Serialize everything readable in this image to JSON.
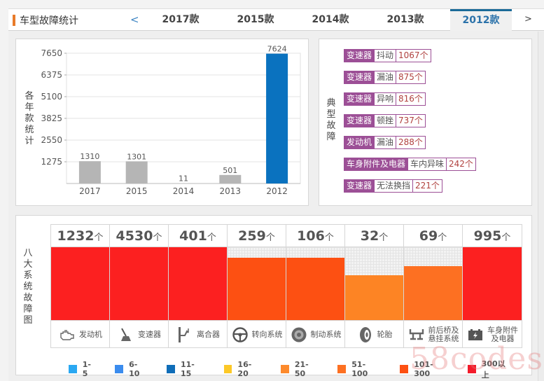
{
  "header": {
    "title": "车型故障统计",
    "prev": "<",
    "next": ">",
    "tabs": [
      {
        "label": "2017款",
        "active": false
      },
      {
        "label": "2015款",
        "active": false
      },
      {
        "label": "2014款",
        "active": false
      },
      {
        "label": "2013款",
        "active": false
      },
      {
        "label": "2012款",
        "active": true
      }
    ]
  },
  "bar_panel": {
    "ylabel_chars": [
      "各",
      "年",
      "款",
      "统",
      "计"
    ]
  },
  "chart_data": {
    "type": "bar",
    "title": "",
    "xlabel": "",
    "ylabel": "各年款统计",
    "categories": [
      "2017",
      "2015",
      "2014",
      "2013",
      "2012"
    ],
    "values": [
      1310,
      1301,
      11,
      501,
      7624
    ],
    "highlight": "2012",
    "colors": {
      "default": "#b5b5b5",
      "highlight": "#0a72bf"
    },
    "yticks": [
      1275,
      2550,
      3825,
      5100,
      6375,
      7650
    ],
    "ylim": [
      0,
      7650
    ],
    "grid": true
  },
  "fault_panel": {
    "label_chars": [
      "典",
      "型",
      "故",
      "障"
    ],
    "items": [
      {
        "part": "变速器",
        "issue": "抖动",
        "count": "1067个"
      },
      {
        "part": "变速器",
        "issue": "漏油",
        "count": "875个"
      },
      {
        "part": "变速器",
        "issue": "异响",
        "count": "816个"
      },
      {
        "part": "变速器",
        "issue": "顿挫",
        "count": "737个"
      },
      {
        "part": "发动机",
        "issue": "漏油",
        "count": "288个"
      },
      {
        "part": "车身附件及电器",
        "issue": "车内异味",
        "count": "242个"
      },
      {
        "part": "变速器",
        "issue": "无法换挡",
        "count": "221个"
      }
    ]
  },
  "system_panel": {
    "label_chars": [
      "八",
      "大",
      "系",
      "统",
      "故",
      "障",
      "图"
    ],
    "unit": "个",
    "systems": [
      {
        "name": "发动机",
        "count": "1232",
        "icon": "engine-icon",
        "level": 1.0,
        "color": "#fc2020"
      },
      {
        "name": "变速器",
        "count": "4530",
        "icon": "gear-shift-icon",
        "level": 1.0,
        "color": "#fc2020"
      },
      {
        "name": "离合器",
        "count": "401",
        "icon": "clutch-pedal-icon",
        "level": 1.0,
        "color": "#fc2020"
      },
      {
        "name": "转向系统",
        "count": "259",
        "icon": "steering-wheel-icon",
        "level": 0.86,
        "color": "#fd5012"
      },
      {
        "name": "制动系统",
        "count": "106",
        "icon": "brake-disc-icon",
        "level": 0.86,
        "color": "#fd5012"
      },
      {
        "name": "轮胎",
        "count": "32",
        "icon": "tire-icon",
        "level": 0.62,
        "color": "#fd8424"
      },
      {
        "name": "前后桥及\n悬挂系统",
        "count": "69",
        "icon": "axle-suspension-icon",
        "level": 0.74,
        "color": "#fd7022"
      },
      {
        "name": "车身附件\n及电器",
        "count": "995",
        "icon": "battery-icon",
        "level": 1.0,
        "color": "#fc2020"
      }
    ],
    "legend": [
      {
        "label": "1-5",
        "color": "#2aa8f2"
      },
      {
        "label": "6-10",
        "color": "#3b8cee"
      },
      {
        "label": "11-15",
        "color": "#0f6db8"
      },
      {
        "label": "16-20",
        "color": "#fcc827"
      },
      {
        "label": "21-50",
        "color": "#fd8a2c"
      },
      {
        "label": "51-100",
        "color": "#fd7022"
      },
      {
        "label": "101-300",
        "color": "#fd5012"
      },
      {
        "label": "300以上",
        "color": "#f31b2a"
      }
    ]
  },
  "watermark": "58codes"
}
